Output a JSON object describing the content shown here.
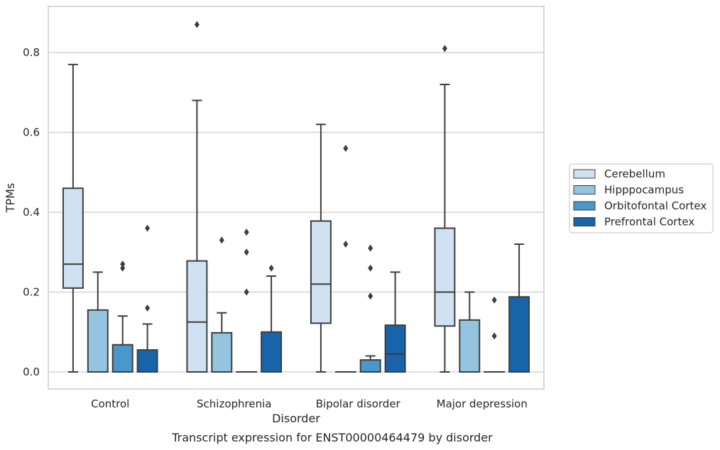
{
  "chart_data": {
    "type": "boxplot",
    "title": "",
    "caption": "Transcript expression for ENST00000464479 by disorder",
    "xlabel": "Disorder",
    "ylabel": "TPMs",
    "ylim": [
      -0.04,
      0.92
    ],
    "yticks": [
      0.0,
      0.2,
      0.4,
      0.6,
      0.8
    ],
    "ytick_labels": [
      "0.0",
      "0.2",
      "0.4",
      "0.6",
      "0.8"
    ],
    "grid": "horizontal",
    "legend_placement": "right",
    "categories": [
      "Control",
      "Schizophrenia",
      "Bipolar disorder",
      "Major depression"
    ],
    "series": [
      {
        "name": "Cerebellum",
        "color": "#d0e1f2",
        "boxes": [
          {
            "whislo": 0.0,
            "q1": 0.21,
            "med": 0.27,
            "q3": 0.46,
            "whishi": 0.77,
            "fliers": []
          },
          {
            "whislo": 0.0,
            "q1": 0.0,
            "med": 0.125,
            "q3": 0.278,
            "whishi": 0.68,
            "fliers": [
              0.87
            ]
          },
          {
            "whislo": 0.0,
            "q1": 0.122,
            "med": 0.22,
            "q3": 0.378,
            "whishi": 0.62,
            "fliers": []
          },
          {
            "whislo": 0.0,
            "q1": 0.115,
            "med": 0.2,
            "q3": 0.36,
            "whishi": 0.72,
            "fliers": [
              0.81
            ]
          }
        ]
      },
      {
        "name": "Hipppocampus",
        "color": "#94c4df",
        "boxes": [
          {
            "whislo": 0.0,
            "q1": 0.0,
            "med": 0.0,
            "q3": 0.155,
            "whishi": 0.25,
            "fliers": []
          },
          {
            "whislo": 0.0,
            "q1": 0.0,
            "med": 0.0,
            "q3": 0.098,
            "whishi": 0.148,
            "fliers": [
              0.33
            ]
          },
          {
            "whislo": 0.0,
            "q1": 0.0,
            "med": 0.0,
            "q3": 0.0,
            "whishi": 0.0,
            "fliers": [
              0.56,
              0.32
            ]
          },
          {
            "whislo": 0.0,
            "q1": 0.0,
            "med": 0.0,
            "q3": 0.13,
            "whishi": 0.2,
            "fliers": []
          }
        ]
      },
      {
        "name": "Orbitofontal Cortex",
        "color": "#4a98c9",
        "boxes": [
          {
            "whislo": 0.0,
            "q1": 0.0,
            "med": 0.0,
            "q3": 0.068,
            "whishi": 0.14,
            "fliers": [
              0.27,
              0.26
            ]
          },
          {
            "whislo": 0.0,
            "q1": 0.0,
            "med": 0.0,
            "q3": 0.0,
            "whishi": 0.0,
            "fliers": [
              0.35,
              0.3,
              0.2
            ]
          },
          {
            "whislo": 0.0,
            "q1": 0.0,
            "med": 0.0,
            "q3": 0.03,
            "whishi": 0.04,
            "fliers": [
              0.31,
              0.26,
              0.19
            ]
          },
          {
            "whislo": 0.0,
            "q1": 0.0,
            "med": 0.0,
            "q3": 0.0,
            "whishi": 0.0,
            "fliers": [
              0.18,
              0.09
            ]
          }
        ]
      },
      {
        "name": "Prefrontal Cortex",
        "color": "#1764ab",
        "boxes": [
          {
            "whislo": 0.0,
            "q1": 0.0,
            "med": 0.0,
            "q3": 0.055,
            "whishi": 0.12,
            "fliers": [
              0.36,
              0.16
            ]
          },
          {
            "whislo": 0.0,
            "q1": 0.0,
            "med": 0.0,
            "q3": 0.1,
            "whishi": 0.24,
            "fliers": [
              0.26
            ]
          },
          {
            "whislo": 0.0,
            "q1": 0.0,
            "med": 0.045,
            "q3": 0.117,
            "whishi": 0.25,
            "fliers": []
          },
          {
            "whislo": 0.0,
            "q1": 0.0,
            "med": 0.0,
            "q3": 0.188,
            "whishi": 0.32,
            "fliers": []
          }
        ]
      }
    ]
  }
}
